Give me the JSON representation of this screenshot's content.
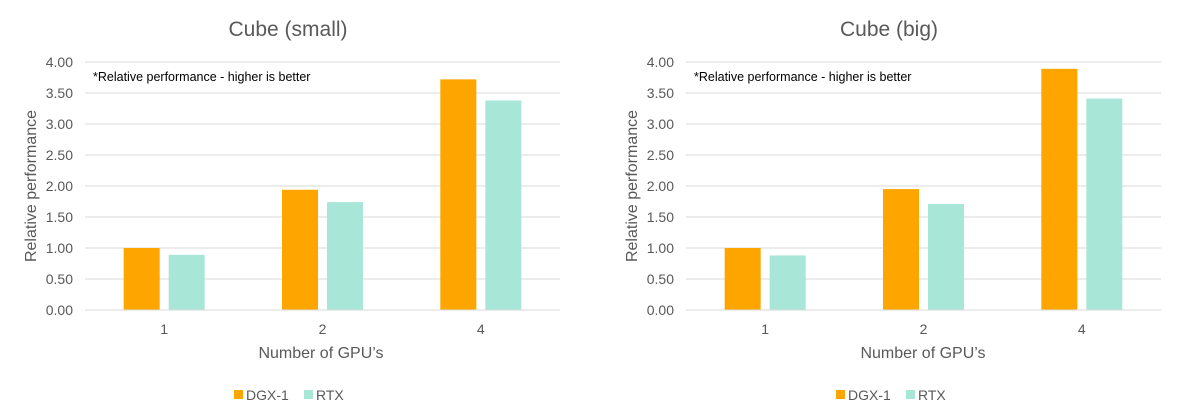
{
  "colors": {
    "dgx": "#FFA500",
    "rtx": "#A8E6D8",
    "grid": "#D9D9D9",
    "text": "#595959",
    "title": "#595959"
  },
  "chart_data": [
    {
      "type": "bar",
      "title": "Cube (small)",
      "xlabel": "Number of GPU’s",
      "ylabel": "Relative performance",
      "note": "*Relative performance - higher is better",
      "categories": [
        "1",
        "2",
        "4"
      ],
      "series": [
        {
          "name": "DGX-1",
          "values": [
            1.0,
            1.94,
            3.72
          ]
        },
        {
          "name": "RTX",
          "values": [
            0.89,
            1.74,
            3.38
          ]
        }
      ],
      "ylim": [
        0,
        4
      ],
      "yticks": [
        "0.00",
        "0.50",
        "1.00",
        "1.50",
        "2.00",
        "2.50",
        "3.00",
        "3.50",
        "4.00"
      ],
      "grid": true,
      "legend": "bottom"
    },
    {
      "type": "bar",
      "title": "Cube (big)",
      "xlabel": "Number of GPU’s",
      "ylabel": "Relative performance",
      "note": "*Relative performance - higher is better",
      "categories": [
        "1",
        "2",
        "4"
      ],
      "series": [
        {
          "name": "DGX-1",
          "values": [
            1.0,
            1.95,
            3.89
          ]
        },
        {
          "name": "RTX",
          "values": [
            0.88,
            1.71,
            3.41
          ]
        }
      ],
      "ylim": [
        0,
        4
      ],
      "yticks": [
        "0.00",
        "0.50",
        "1.00",
        "1.50",
        "2.00",
        "2.50",
        "3.00",
        "3.50",
        "4.00"
      ],
      "grid": true,
      "legend": "bottom"
    }
  ]
}
